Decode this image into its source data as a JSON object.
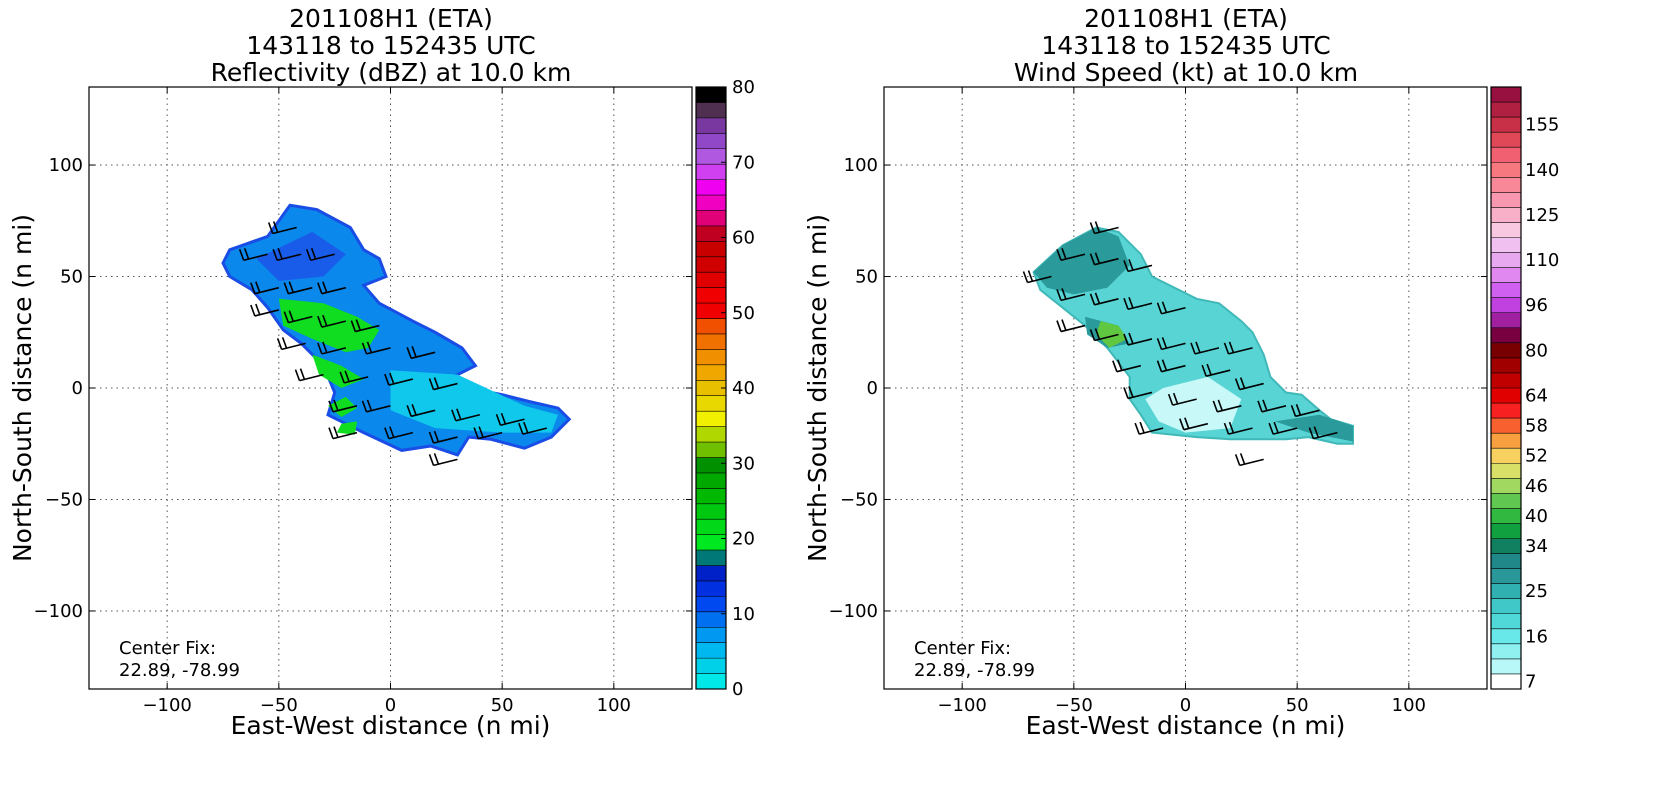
{
  "chart_data": [
    {
      "type": "heatmap",
      "title_lines": [
        "201108H1 (ETA)",
        "143118 to 152435 UTC",
        "Reflectivity (dBZ) at 10.0 km"
      ],
      "xlabel": "East-West distance (n mi)",
      "ylabel": "North-South distance (n mi)",
      "xlim": [
        -135,
        135
      ],
      "ylim": [
        -135,
        135
      ],
      "xticks": [
        -100,
        -50,
        0,
        50,
        100
      ],
      "yticks": [
        -100,
        -50,
        0,
        50,
        100
      ],
      "xtick_labels": [
        "−100",
        "−50",
        "0",
        "50",
        "100"
      ],
      "ytick_labels": [
        "−100",
        "−50",
        "0",
        "50",
        "100"
      ],
      "grid": true,
      "annotation": [
        "Center Fix:",
        "22.89, -78.99"
      ],
      "colorbar": {
        "label_values": [
          0,
          10,
          20,
          30,
          40,
          50,
          60,
          70,
          80
        ],
        "labels": [
          "0",
          "10",
          "20",
          "30",
          "40",
          "50",
          "60",
          "70",
          "80"
        ],
        "range": [
          0,
          80
        ],
        "colors": [
          "#00e8e8",
          "#00d0e8",
          "#00b8f0",
          "#0098f0",
          "#0070f0",
          "#0048f0",
          "#0030e0",
          "#0020c8",
          "#007878",
          "#00e820",
          "#00d818",
          "#00c810",
          "#00b800",
          "#00a800",
          "#009000",
          "#70c000",
          "#b0d800",
          "#f0f000",
          "#e8d800",
          "#e8c000",
          "#f0a800",
          "#f09000",
          "#f07000",
          "#f05000",
          "#f00000",
          "#f00000",
          "#e00000",
          "#d00000",
          "#c80000",
          "#c00020",
          "#e00078",
          "#f000c0",
          "#f000f0",
          "#d040f0",
          "#b058e0",
          "#9048c8",
          "#7838a0",
          "#503050",
          "#000000"
        ]
      },
      "echo_polygon": [
        [
          -72,
          62
        ],
        [
          -55,
          68
        ],
        [
          -45,
          82
        ],
        [
          -33,
          80
        ],
        [
          -18,
          72
        ],
        [
          -12,
          62
        ],
        [
          -5,
          58
        ],
        [
          -2,
          50
        ],
        [
          -12,
          46
        ],
        [
          -5,
          38
        ],
        [
          10,
          30
        ],
        [
          20,
          25
        ],
        [
          32,
          18
        ],
        [
          38,
          10
        ],
        [
          28,
          5
        ],
        [
          40,
          -1
        ],
        [
          50,
          -3
        ],
        [
          62,
          -6
        ],
        [
          75,
          -9
        ],
        [
          80,
          -14
        ],
        [
          72,
          -22
        ],
        [
          60,
          -27
        ],
        [
          45,
          -23
        ],
        [
          35,
          -22
        ],
        [
          30,
          -30
        ],
        [
          18,
          -26
        ],
        [
          5,
          -28
        ],
        [
          -12,
          -20
        ],
        [
          -28,
          -12
        ],
        [
          -25,
          -2
        ],
        [
          -30,
          10
        ],
        [
          -40,
          20
        ],
        [
          -48,
          26
        ],
        [
          -55,
          36
        ],
        [
          -62,
          44
        ],
        [
          -72,
          50
        ],
        [
          -75,
          56
        ]
      ],
      "green_patches": [
        [
          [
            -50,
            40
          ],
          [
            -30,
            38
          ],
          [
            -15,
            32
          ],
          [
            -5,
            26
          ],
          [
            -10,
            18
          ],
          [
            -20,
            16
          ],
          [
            -35,
            22
          ],
          [
            -48,
            28
          ]
        ],
        [
          [
            -35,
            15
          ],
          [
            -22,
            10
          ],
          [
            -12,
            4
          ],
          [
            -22,
            0
          ],
          [
            -32,
            6
          ]
        ],
        [
          [
            -28,
            -8
          ],
          [
            -20,
            -4
          ],
          [
            -15,
            -9
          ],
          [
            -22,
            -13
          ]
        ],
        [
          [
            -22,
            -16
          ],
          [
            -15,
            -15
          ],
          [
            -16,
            -21
          ],
          [
            -24,
            -20
          ]
        ]
      ],
      "barbs": [
        [
          -42,
          72
        ],
        [
          -55,
          60
        ],
        [
          -40,
          60
        ],
        [
          -25,
          60
        ],
        [
          -50,
          45
        ],
        [
          -35,
          45
        ],
        [
          -20,
          45
        ],
        [
          -50,
          35
        ],
        [
          -35,
          32
        ],
        [
          -20,
          30
        ],
        [
          -5,
          28
        ],
        [
          -38,
          20
        ],
        [
          -20,
          18
        ],
        [
          0,
          18
        ],
        [
          20,
          16
        ],
        [
          -30,
          6
        ],
        [
          -10,
          5
        ],
        [
          10,
          4
        ],
        [
          30,
          2
        ],
        [
          -15,
          -8
        ],
        [
          0,
          -8
        ],
        [
          20,
          -10
        ],
        [
          40,
          -12
        ],
        [
          60,
          -14
        ],
        [
          -15,
          -20
        ],
        [
          10,
          -20
        ],
        [
          30,
          -22
        ],
        [
          50,
          -20
        ],
        [
          70,
          -18
        ],
        [
          30,
          -32
        ]
      ]
    },
    {
      "type": "heatmap",
      "title_lines": [
        "201108H1 (ETA)",
        "143118 to 152435 UTC",
        "Wind Speed (kt) at 10.0 km"
      ],
      "xlabel": "East-West distance (n mi)",
      "ylabel": "North-South distance (n mi)",
      "xlim": [
        -135,
        135
      ],
      "ylim": [
        -135,
        135
      ],
      "xticks": [
        -100,
        -50,
        0,
        50,
        100
      ],
      "yticks": [
        -100,
        -50,
        0,
        50,
        100
      ],
      "xtick_labels": [
        "−100",
        "−50",
        "0",
        "50",
        "100"
      ],
      "ytick_labels": [
        "−100",
        "−50",
        "0",
        "50",
        "100"
      ],
      "grid": true,
      "annotation": [
        "Center Fix:",
        "22.89, -78.99"
      ],
      "colorbar": {
        "labels": [
          "7",
          "16",
          "25",
          "34",
          "40",
          "46",
          "52",
          "58",
          "64",
          "80",
          "96",
          "110",
          "125",
          "140",
          "155"
        ],
        "label_bins": [
          0,
          3,
          6,
          9,
          11,
          13,
          15,
          17,
          19,
          22,
          25,
          28,
          31,
          34,
          37
        ],
        "colors": [
          "#ffffff",
          "#b8f8f8",
          "#90f0f0",
          "#68e8e8",
          "#50d8d8",
          "#40c8c8",
          "#30b0b0",
          "#2a9898",
          "#208888",
          "#108060",
          "#10a040",
          "#30b840",
          "#60c850",
          "#a0d860",
          "#d8e068",
          "#f8d060",
          "#f8a040",
          "#f86030",
          "#f82020",
          "#e00000",
          "#c00000",
          "#a00000",
          "#780000",
          "#780040",
          "#a020a0",
          "#c040e0",
          "#d060f0",
          "#e088f0",
          "#e8a8f0",
          "#f0c0f0",
          "#f8c8e0",
          "#f8b0c8",
          "#f898b0",
          "#f88898",
          "#f87880",
          "#f06070",
          "#e04858",
          "#c83048",
          "#b02040",
          "#981040"
        ]
      },
      "echo_polygon": [
        [
          -68,
          52
        ],
        [
          -55,
          64
        ],
        [
          -40,
          72
        ],
        [
          -30,
          70
        ],
        [
          -20,
          60
        ],
        [
          -15,
          50
        ],
        [
          -5,
          45
        ],
        [
          5,
          40
        ],
        [
          15,
          38
        ],
        [
          25,
          30
        ],
        [
          30,
          25
        ],
        [
          35,
          15
        ],
        [
          38,
          5
        ],
        [
          45,
          -2
        ],
        [
          52,
          -3
        ],
        [
          60,
          -10
        ],
        [
          65,
          -14
        ],
        [
          75,
          -17
        ],
        [
          75,
          -25
        ],
        [
          68,
          -25
        ],
        [
          55,
          -22
        ],
        [
          45,
          -23
        ],
        [
          38,
          -23
        ],
        [
          20,
          -23
        ],
        [
          5,
          -22
        ],
        [
          -15,
          -20
        ],
        [
          -20,
          -12
        ],
        [
          -25,
          -5
        ],
        [
          -25,
          5
        ],
        [
          -35,
          18
        ],
        [
          -45,
          28
        ],
        [
          -55,
          36
        ],
        [
          -65,
          44
        ]
      ],
      "dark_patches": [
        [
          [
            -68,
            52
          ],
          [
            -55,
            64
          ],
          [
            -40,
            72
          ],
          [
            -30,
            68
          ],
          [
            -25,
            55
          ],
          [
            -35,
            45
          ],
          [
            -50,
            42
          ],
          [
            -62,
            45
          ]
        ],
        [
          [
            -45,
            32
          ],
          [
            -30,
            28
          ],
          [
            -25,
            20
          ],
          [
            -35,
            18
          ],
          [
            -44,
            24
          ]
        ],
        [
          [
            40,
            -15
          ],
          [
            60,
            -12
          ],
          [
            75,
            -17
          ],
          [
            75,
            -24
          ],
          [
            55,
            -20
          ]
        ]
      ],
      "light_patches": [
        [
          [
            -10,
            0
          ],
          [
            10,
            5
          ],
          [
            25,
            -5
          ],
          [
            20,
            -18
          ],
          [
            0,
            -20
          ],
          [
            -12,
            -15
          ],
          [
            -18,
            -5
          ]
        ]
      ],
      "green_patches": [
        [
          [
            -38,
            30
          ],
          [
            -30,
            28
          ],
          [
            -26,
            22
          ],
          [
            -34,
            18
          ],
          [
            -40,
            24
          ]
        ]
      ],
      "barbs": [
        [
          -30,
          72
        ],
        [
          -45,
          60
        ],
        [
          -30,
          58
        ],
        [
          -15,
          55
        ],
        [
          -60,
          50
        ],
        [
          -45,
          42
        ],
        [
          -30,
          40
        ],
        [
          -15,
          38
        ],
        [
          0,
          36
        ],
        [
          -45,
          28
        ],
        [
          -30,
          24
        ],
        [
          -15,
          22
        ],
        [
          0,
          20
        ],
        [
          15,
          18
        ],
        [
          30,
          18
        ],
        [
          -20,
          10
        ],
        [
          0,
          10
        ],
        [
          20,
          8
        ],
        [
          35,
          2
        ],
        [
          -15,
          -2
        ],
        [
          5,
          -5
        ],
        [
          25,
          -8
        ],
        [
          45,
          -8
        ],
        [
          60,
          -10
        ],
        [
          -10,
          -18
        ],
        [
          10,
          -16
        ],
        [
          30,
          -18
        ],
        [
          50,
          -18
        ],
        [
          68,
          -20
        ],
        [
          35,
          -32
        ]
      ]
    }
  ]
}
